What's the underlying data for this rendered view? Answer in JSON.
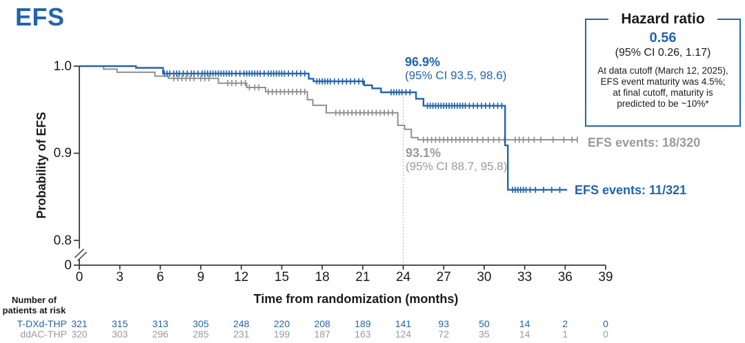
{
  "title": "EFS",
  "colors": {
    "blue": "#2264AD",
    "gray_curve": "#8F8F8F",
    "gray_text": "#9A9A9A",
    "axis": "#3A3A3A",
    "dotted": "#A8A8A8"
  },
  "hazard_box": {
    "title": "Hazard ratio",
    "value": "0.56",
    "ci": "(95% CI 0.26, 1.17)",
    "note_lines": [
      "At data cutoff (March 12, 2025),",
      "EFS event maturity was 4.5%;",
      "at final cutoff, maturity is",
      "predicted to be ~10%*"
    ]
  },
  "annotations": {
    "tdxd": {
      "pct": "96.9%",
      "ci": "(95% CI 93.5, 98.6)"
    },
    "ddac": {
      "pct": "93.1%",
      "ci": "(95% CI 88.7, 95.8)"
    },
    "events_tdxd": "EFS events: 11/321",
    "events_ddac": "EFS events: 18/320"
  },
  "chart_data": {
    "type": "line",
    "subtype": "kaplan-meier-step",
    "title": "EFS",
    "xlabel": "Time from randomization (months)",
    "ylabel": "Probability of EFS",
    "x_ticks": [
      0,
      3,
      6,
      9,
      12,
      15,
      18,
      21,
      24,
      27,
      30,
      33,
      36,
      39
    ],
    "y_ticks": [
      {
        "label": "1.0",
        "p": 1.0
      },
      {
        "label": "0.9",
        "p": 0.9
      },
      {
        "label": "0.8",
        "p": 0.8
      },
      {
        "label": "0",
        "p": 0
      }
    ],
    "xlim": [
      0,
      39
    ],
    "ylim_display": [
      0.8,
      1.0
    ],
    "y_axis_break": true,
    "landmark_month": 24,
    "series": [
      {
        "name": "ddAC-THP",
        "color_key": "gray_curve",
        "landmark_pct_at_24mo": 93.1,
        "landmark_ci": [
          88.7,
          95.8
        ],
        "events": "18/320",
        "start": [
          0,
          1.0
        ],
        "steps": [
          [
            1.8,
            0.9965
          ],
          [
            2.8,
            0.993
          ],
          [
            5.6,
            0.9885
          ],
          [
            6.6,
            0.986
          ],
          [
            10.3,
            0.9805
          ],
          [
            12.4,
            0.9755
          ],
          [
            13.8,
            0.9705
          ],
          [
            16.9,
            0.9615
          ],
          [
            17.3,
            0.955
          ],
          [
            18.3,
            0.9465
          ],
          [
            23.6,
            0.932
          ],
          [
            24.1,
            0.9275
          ],
          [
            24.6,
            0.918
          ],
          [
            25.1,
            0.9155
          ]
        ],
        "end_month": 36.9,
        "censor_months": [
          7.0,
          7.3,
          7.6,
          7.9,
          8.2,
          8.5,
          9.0,
          9.3,
          9.6,
          11.0,
          11.3,
          11.6,
          12.0,
          12.3,
          12.6,
          13.0,
          13.3,
          14.0,
          14.3,
          14.6,
          14.9,
          15.2,
          15.5,
          15.8,
          16.1,
          16.4,
          16.7,
          19.0,
          19.3,
          19.6,
          19.9,
          20.2,
          20.5,
          20.8,
          21.1,
          21.4,
          21.7,
          22.0,
          22.3,
          22.6,
          22.9,
          23.2,
          25.5,
          25.8,
          26.1,
          26.4,
          26.7,
          27.0,
          27.3,
          27.6,
          27.9,
          28.2,
          28.5,
          28.8,
          29.1,
          29.5,
          29.9,
          30.3,
          30.7,
          31.1,
          31.5,
          32.3,
          32.6,
          32.9,
          33.3,
          33.7,
          34.2,
          35.1,
          35.9,
          36.5,
          36.9
        ]
      },
      {
        "name": "T-DXd-THP",
        "color_key": "blue",
        "landmark_pct_at_24mo": 96.9,
        "landmark_ci": [
          93.5,
          98.6
        ],
        "events": "11/321",
        "start": [
          0,
          1.0
        ],
        "steps": [
          [
            4.2,
            0.998
          ],
          [
            6.2,
            0.9915
          ],
          [
            17.0,
            0.9855
          ],
          [
            17.35,
            0.9825
          ],
          [
            21.1,
            0.978
          ],
          [
            21.7,
            0.9745
          ],
          [
            22.35,
            0.97
          ],
          [
            24.95,
            0.9625
          ],
          [
            25.5,
            0.9545
          ],
          [
            31.55,
            0.909
          ],
          [
            31.75,
            0.858
          ]
        ],
        "end_month": 36.15,
        "censor_months": [
          6.3,
          6.5,
          6.7,
          7.0,
          7.2,
          7.4,
          7.7,
          8.0,
          8.3,
          8.5,
          8.8,
          9.1,
          9.3,
          9.5,
          9.7,
          9.9,
          10.1,
          10.3,
          10.5,
          10.7,
          10.9,
          11.1,
          11.3,
          11.6,
          11.9,
          12.2,
          12.4,
          12.6,
          12.8,
          13.0,
          13.2,
          13.4,
          13.7,
          14.0,
          14.2,
          14.4,
          14.6,
          14.8,
          15.0,
          15.2,
          15.5,
          15.8,
          16.1,
          16.4,
          16.7,
          17.6,
          17.8,
          18.0,
          18.2,
          18.4,
          18.6,
          18.9,
          19.2,
          19.5,
          19.8,
          20.1,
          20.4,
          20.7,
          21.0,
          23.1,
          23.3,
          23.5,
          23.7,
          23.9,
          24.2,
          24.5,
          25.8,
          26.0,
          26.2,
          26.4,
          26.6,
          26.8,
          27.0,
          27.2,
          27.4,
          27.6,
          27.8,
          28.0,
          28.2,
          28.4,
          28.6,
          28.9,
          29.2,
          29.5,
          29.8,
          30.1,
          30.4,
          30.7,
          31.0,
          31.3,
          32.1,
          32.3,
          32.5,
          32.7,
          32.9,
          33.1,
          33.4,
          33.8,
          34.4,
          35.0,
          35.6
        ]
      }
    ]
  },
  "risk_table": {
    "header_lines": [
      "Number of",
      "patients at risk"
    ],
    "rows": [
      {
        "label": "T-DXd-THP",
        "color_key": "blue",
        "values": [
          321,
          315,
          313,
          305,
          248,
          220,
          208,
          189,
          141,
          93,
          50,
          14,
          2,
          0
        ]
      },
      {
        "label": "ddAC-THP",
        "color_key": "gray_text",
        "values": [
          320,
          303,
          296,
          285,
          231,
          199,
          187,
          163,
          124,
          72,
          35,
          14,
          1,
          0
        ]
      }
    ]
  }
}
